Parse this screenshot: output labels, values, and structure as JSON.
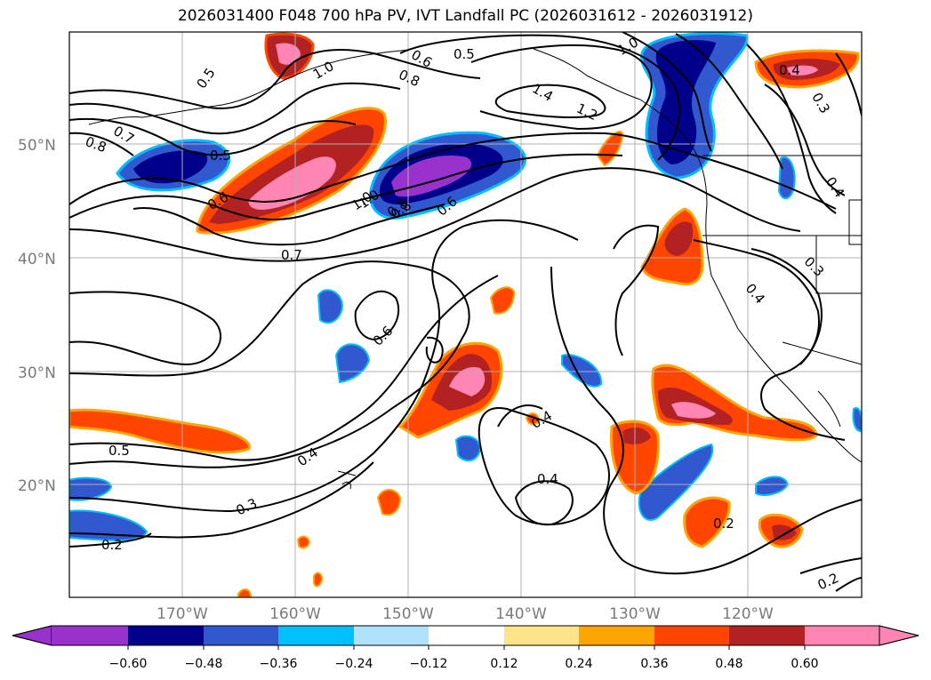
{
  "title": "2026031400 F048 700 hPa PV, IVT Landfall PC (2026031612 - 2026031912)",
  "map": {
    "lat_labels": [
      "50°N",
      "40°N",
      "30°N",
      "20°N"
    ],
    "lon_labels": [
      "170°W",
      "160°W",
      "150°W",
      "140°W",
      "130°W",
      "120°W"
    ],
    "contour_labels": [
      "0.5",
      "0.7",
      "0.8",
      "1.0",
      "0.6",
      "0.5",
      "1.0",
      "0.8",
      "0.8",
      "0.6",
      "0.5",
      "1.0",
      "1.4",
      "1.2",
      "0.4",
      "0.3",
      "0.7",
      "1.0",
      "0.8",
      "0.6",
      "0.6",
      "0.3",
      "0.4",
      "0.4",
      "0.5",
      "0.4",
      "0.3",
      "0.2",
      "0.4",
      "0.2",
      "0.2",
      "0.4"
    ]
  },
  "colorbar": {
    "ticks": [
      "−0.60",
      "−0.48",
      "−0.36",
      "−0.24",
      "−0.12",
      "0.12",
      "0.24",
      "0.36",
      "0.48",
      "0.60"
    ],
    "colors": [
      "#9932cc",
      "#00008b",
      "#3158cf",
      "#00bfff",
      "#aee2fa",
      "#ffffff",
      "#fbe48a",
      "#ffa500",
      "#ff4500",
      "#b22222",
      "#ff85b3"
    ]
  }
}
